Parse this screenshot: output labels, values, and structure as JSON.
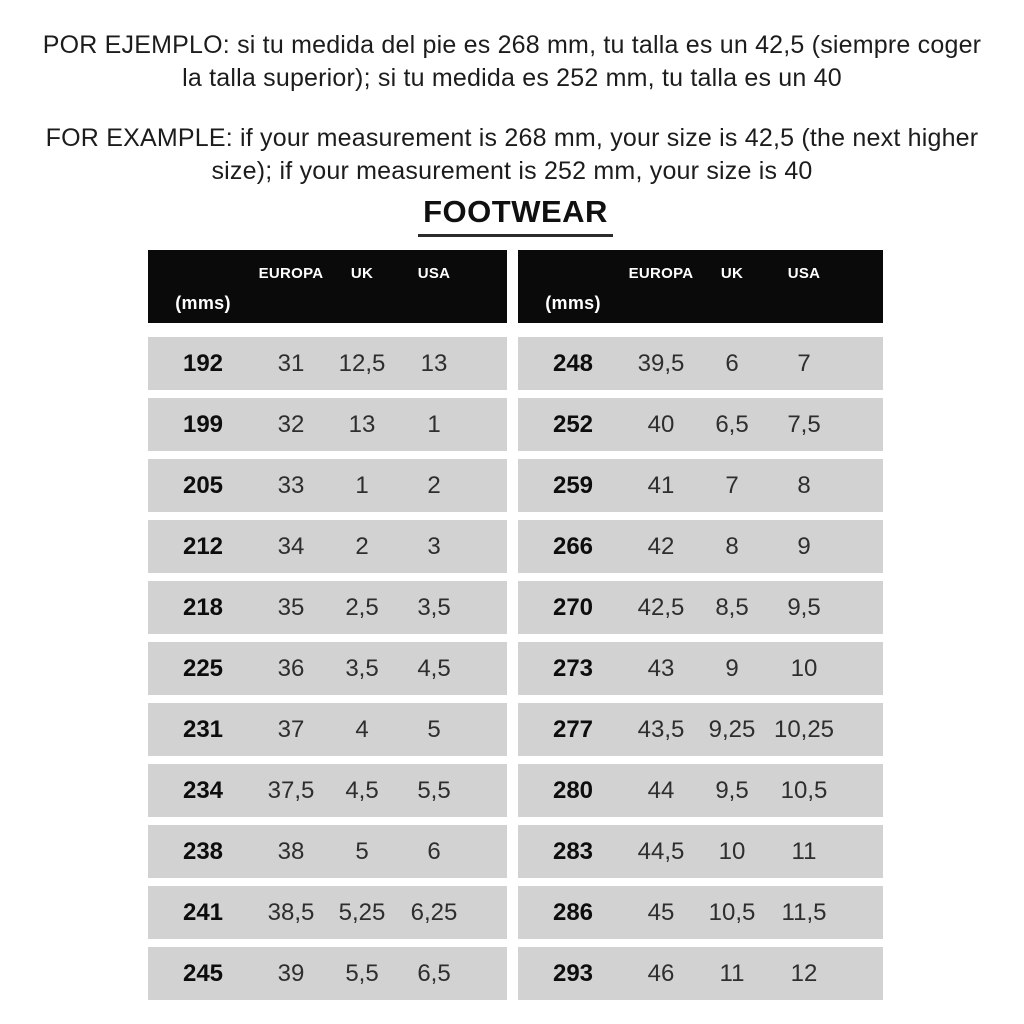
{
  "intro": {
    "spanish_lines": [
      "POR EJEMPLO: si tu medida del pie es 268 mm, tu talla es un 42,5 (siempre coger",
      "la talla superior); si tu medida es 252 mm, tu talla es un 40"
    ],
    "english_lines": [
      "FOR EXAMPLE: if your measurement is 268 mm, your size is 42,5 (the next higher",
      "size); if your measurement is 252 mm, your size is 40"
    ]
  },
  "title": "FOOTWEAR",
  "table_header": {
    "mms_label": "(mms)",
    "europa_label": "EUROPA",
    "uk_label": "UK",
    "usa_label": "USA"
  },
  "tables": {
    "columns": [
      "(mms)",
      "EUROPA",
      "UK",
      "USA"
    ],
    "left_rows": [
      [
        "192",
        "31",
        "12,5",
        "13"
      ],
      [
        "199",
        "32",
        "13",
        "1"
      ],
      [
        "205",
        "33",
        "1",
        "2"
      ],
      [
        "212",
        "34",
        "2",
        "3"
      ],
      [
        "218",
        "35",
        "2,5",
        "3,5"
      ],
      [
        "225",
        "36",
        "3,5",
        "4,5"
      ],
      [
        "231",
        "37",
        "4",
        "5"
      ],
      [
        "234",
        "37,5",
        "4,5",
        "5,5"
      ],
      [
        "238",
        "38",
        "5",
        "6"
      ],
      [
        "241",
        "38,5",
        "5,25",
        "6,25"
      ],
      [
        "245",
        "39",
        "5,5",
        "6,5"
      ]
    ],
    "right_rows": [
      [
        "248",
        "39,5",
        "6",
        "7"
      ],
      [
        "252",
        "40",
        "6,5",
        "7,5"
      ],
      [
        "259",
        "41",
        "7",
        "8"
      ],
      [
        "266",
        "42",
        "8",
        "9"
      ],
      [
        "270",
        "42,5",
        "8,5",
        "9,5"
      ],
      [
        "273",
        "43",
        "9",
        "10"
      ],
      [
        "277",
        "43,5",
        "9,25",
        "10,25"
      ],
      [
        "280",
        "44",
        "9,5",
        "10,5"
      ],
      [
        "283",
        "44,5",
        "10",
        "11"
      ],
      [
        "286",
        "45",
        "10,5",
        "11,5"
      ],
      [
        "293",
        "46",
        "11",
        "12"
      ]
    ]
  },
  "colors": {
    "header_bg": "#0a0a0a",
    "row_bg": "#d2d2d2",
    "header_text": "#ffffff",
    "body_text": "#1c1c1c"
  }
}
